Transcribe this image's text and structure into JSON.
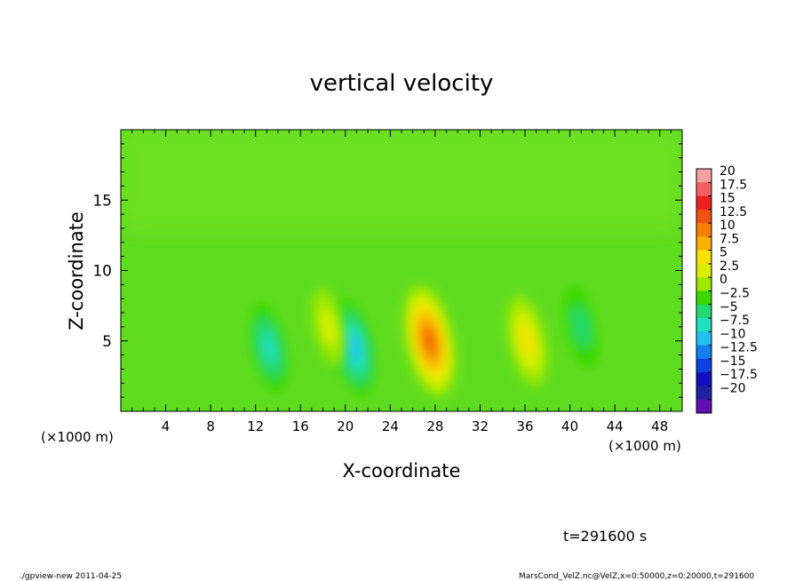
{
  "chart_data": {
    "type": "heatmap",
    "title": "vertical velocity",
    "xlabel": "X-coordinate",
    "ylabel": "Z-coordinate",
    "x_unit_left": "(×1000 m)",
    "x_unit_right": "(×1000 m)",
    "xlim": [
      0,
      50
    ],
    "ylim": [
      0,
      20
    ],
    "x_ticks": [
      4,
      8,
      12,
      16,
      20,
      24,
      28,
      32,
      36,
      40,
      44,
      48
    ],
    "y_ticks": [
      5,
      10,
      15
    ],
    "colorbar": {
      "levels": [
        20,
        17.5,
        15,
        12.5,
        10,
        7.5,
        5,
        2.5,
        0,
        -2.5,
        -5,
        -7.5,
        -10,
        -12.5,
        -15,
        -17.5,
        -20
      ],
      "colors": [
        "#f5a0a0",
        "#f36060",
        "#ef2020",
        "#f05010",
        "#f68000",
        "#fbb000",
        "#f8e000",
        "#d8f000",
        "#9de800",
        "#3ad800",
        "#22d870",
        "#20e0c0",
        "#20c0f0",
        "#1080f0",
        "#1040e0",
        "#1010c0",
        "#2020a0",
        "#6010b0"
      ]
    },
    "field_features": [
      {
        "x": 27.5,
        "z": 5,
        "w": 13
      },
      {
        "x": 36.2,
        "z": 5,
        "w": 7
      },
      {
        "x": 20.8,
        "z": 4.5,
        "w": -9
      },
      {
        "x": 13.2,
        "z": 4.5,
        "w": -7
      },
      {
        "x": 41.0,
        "z": 6,
        "w": -5
      },
      {
        "x": 18.5,
        "z": 6,
        "w": 3
      }
    ],
    "annotation_time": "t=291600 s"
  },
  "footer": {
    "left": "./gpview-new   2011-04-25",
    "right": "MarsCond_VelZ.nc@VelZ,x=0:50000,z=0:20000,t=291600"
  }
}
